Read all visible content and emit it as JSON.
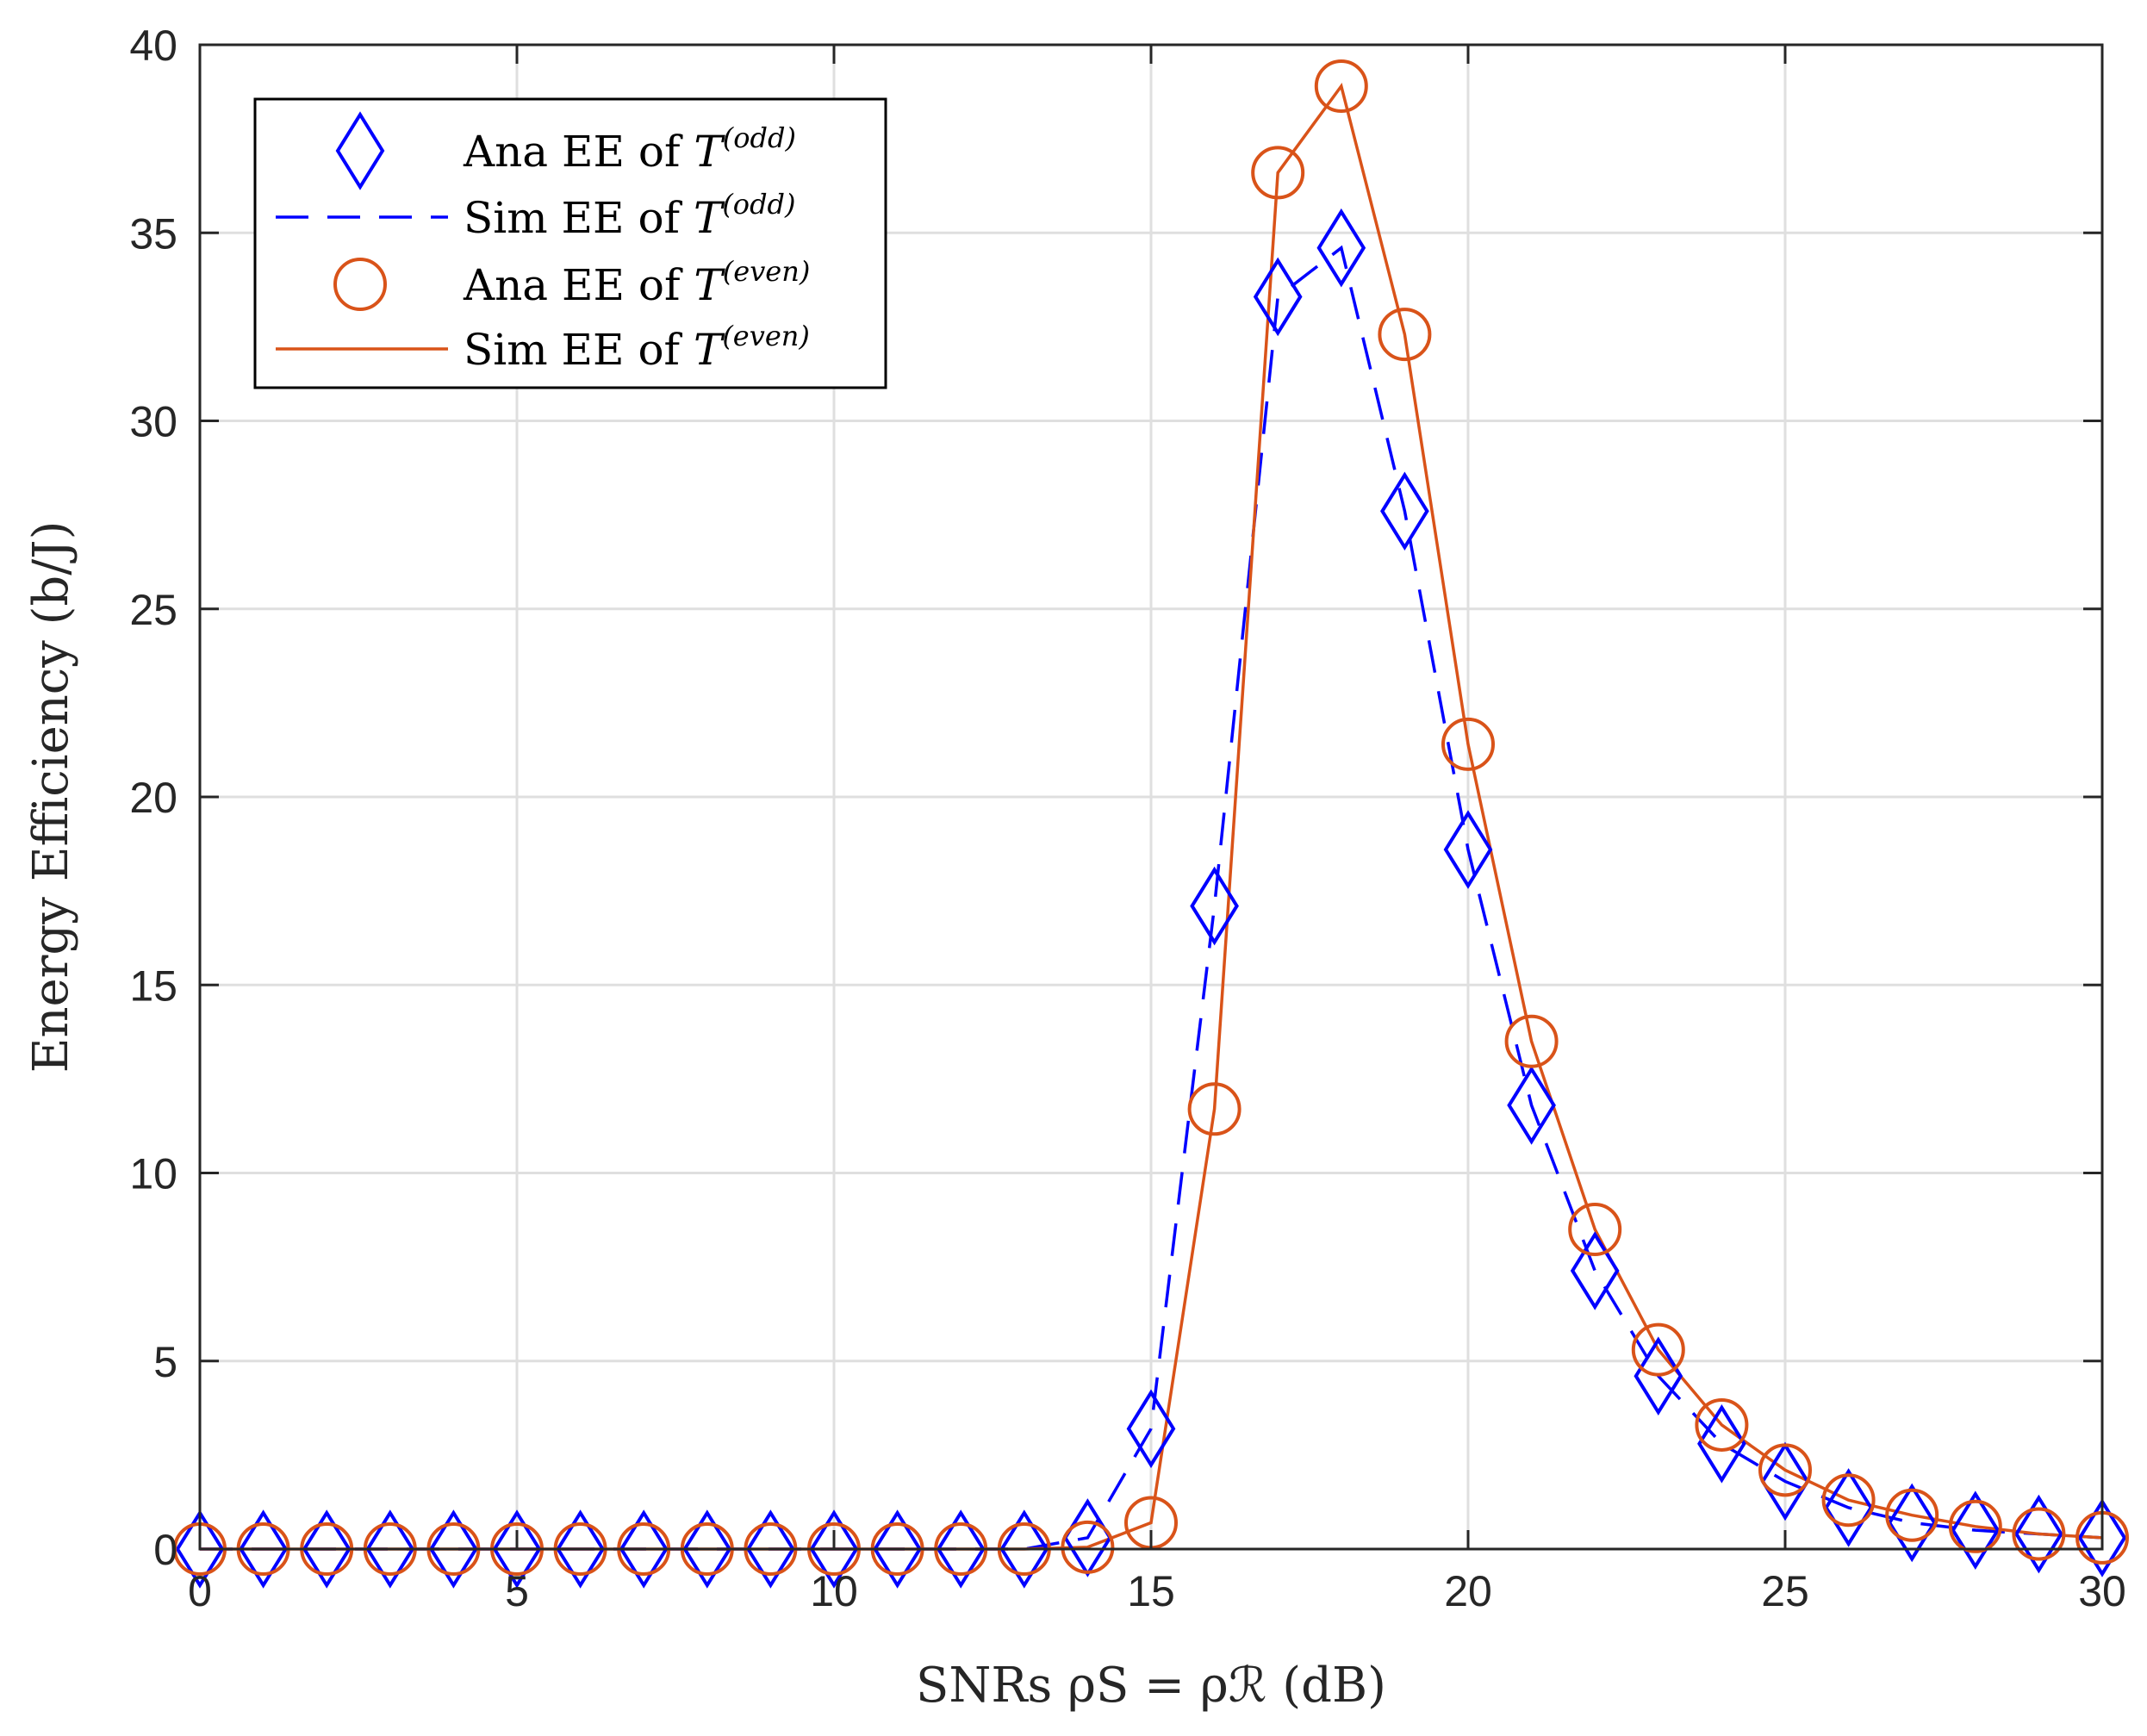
{
  "colors": {
    "odd": "#0000ff",
    "even": "#d95319",
    "axis": "#262626",
    "grid": "#dfdfdf"
  },
  "chart_data": {
    "type": "line",
    "title": "",
    "xlabel": "SNRs ρS = ρℛ (dB)",
    "ylabel": "Energy Efficiency (b/J)",
    "xlim": [
      0,
      30
    ],
    "ylim": [
      0,
      40
    ],
    "xticks": [
      0,
      5,
      10,
      15,
      20,
      25,
      30
    ],
    "yticks": [
      0,
      5,
      10,
      15,
      20,
      25,
      30,
      35,
      40
    ],
    "grid": true,
    "legend_position": "top-left",
    "x": [
      0,
      1,
      2,
      3,
      4,
      5,
      6,
      7,
      8,
      9,
      10,
      11,
      12,
      13,
      14,
      15,
      16,
      17,
      18,
      19,
      20,
      21,
      22,
      23,
      24,
      25,
      26,
      27,
      28,
      29,
      30
    ],
    "series": [
      {
        "name": "Ana EE of T(odd)",
        "label_main": "Ana EE of ",
        "label_sup": "(odd)",
        "style": "marker-diamond",
        "color": "#0000ff",
        "values": [
          0,
          0,
          0,
          0,
          0,
          0,
          0,
          0,
          0,
          0,
          0,
          0,
          0,
          0,
          0.3,
          3.2,
          17.1,
          33.3,
          34.6,
          27.6,
          18.6,
          11.8,
          7.4,
          4.6,
          2.8,
          1.8,
          1.1,
          0.7,
          0.5,
          0.4,
          0.3
        ]
      },
      {
        "name": "Sim EE of T(odd)",
        "label_main": "Sim EE of ",
        "label_sup": "(odd)",
        "style": "dashed",
        "color": "#0000ff",
        "values": [
          0,
          0,
          0,
          0,
          0,
          0,
          0,
          0,
          0,
          0,
          0,
          0,
          0,
          0,
          0.3,
          3.2,
          17.1,
          33.3,
          34.6,
          27.6,
          18.6,
          11.8,
          7.4,
          4.6,
          2.8,
          1.8,
          1.1,
          0.7,
          0.5,
          0.4,
          0.3
        ]
      },
      {
        "name": "Ana EE of T(even)",
        "label_main": "Ana EE of ",
        "label_sup": "(even)",
        "style": "marker-circle",
        "color": "#d95319",
        "values": [
          0,
          0,
          0,
          0,
          0,
          0,
          0,
          0,
          0,
          0,
          0,
          0,
          0,
          0,
          0.05,
          0.7,
          11.7,
          36.6,
          38.9,
          32.3,
          21.4,
          13.5,
          8.5,
          5.3,
          3.3,
          2.1,
          1.3,
          0.9,
          0.6,
          0.4,
          0.3
        ]
      },
      {
        "name": "Sim EE of T(even)",
        "label_main": "Sim EE of ",
        "label_sup": "(even)",
        "style": "solid",
        "color": "#d95319",
        "values": [
          0,
          0,
          0,
          0,
          0,
          0,
          0,
          0,
          0,
          0,
          0,
          0,
          0,
          0,
          0.05,
          0.7,
          11.7,
          36.6,
          38.9,
          32.3,
          21.4,
          13.5,
          8.5,
          5.3,
          3.3,
          2.1,
          1.3,
          0.9,
          0.6,
          0.4,
          0.3
        ]
      }
    ]
  }
}
